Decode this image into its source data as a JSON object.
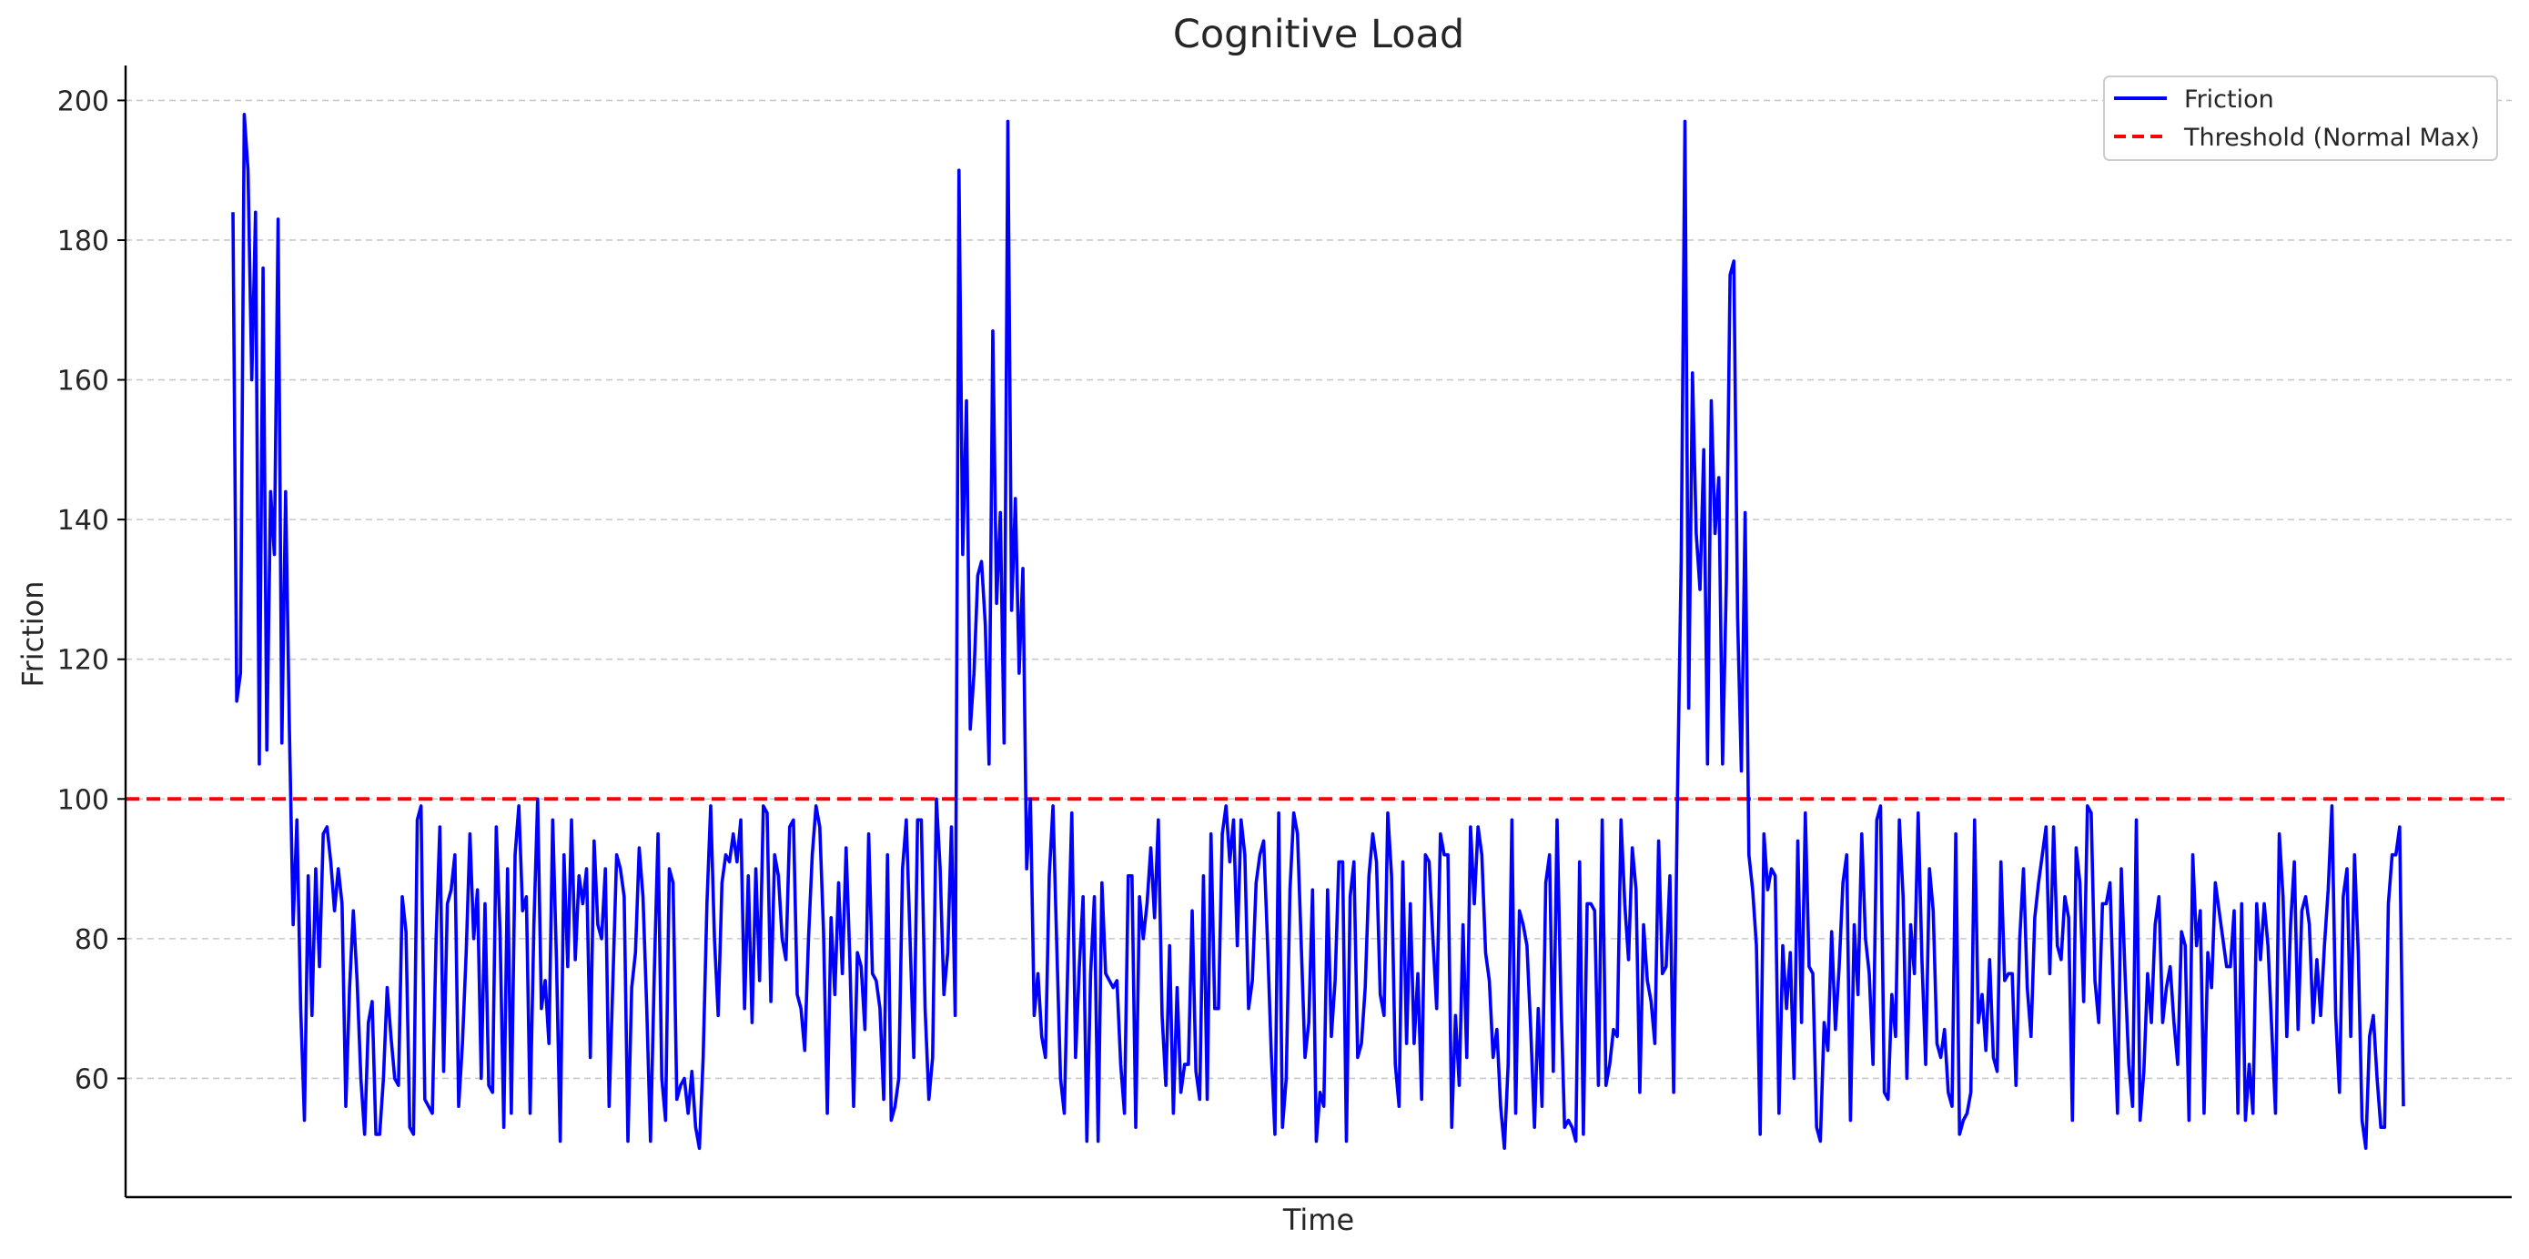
{
  "chart_data": {
    "type": "line",
    "title": "Cognitive Load",
    "xlabel": "Time",
    "ylabel": "Friction",
    "ylim": [
      43,
      205
    ],
    "yticks": [
      60,
      80,
      100,
      120,
      140,
      160,
      180,
      200
    ],
    "xticks_shown": false,
    "grid": "horizontal-dashed",
    "legend_position": "top-right",
    "series": [
      {
        "name": "Friction",
        "color": "#0000ff",
        "style": "solid",
        "values": [
          184,
          114,
          118,
          198,
          190,
          160,
          184,
          105,
          176,
          107,
          144,
          135,
          183,
          108,
          144,
          110,
          82,
          97,
          70,
          54,
          89,
          69,
          90,
          76,
          95,
          96,
          91,
          84,
          90,
          85,
          56,
          73,
          84,
          74,
          60,
          52,
          68,
          71,
          52,
          52,
          60,
          73,
          66,
          60,
          59,
          86,
          81,
          53,
          52,
          97,
          99,
          57,
          56,
          55,
          80,
          96,
          61,
          85,
          87,
          92,
          56,
          65,
          78,
          95,
          80,
          87,
          60,
          85,
          59,
          58,
          96,
          81,
          53,
          90,
          55,
          92,
          99,
          84,
          86,
          55,
          82,
          100,
          70,
          74,
          65,
          97,
          77,
          51,
          92,
          76,
          97,
          77,
          89,
          85,
          90,
          63,
          94,
          82,
          80,
          90,
          56,
          74,
          92,
          90,
          86,
          51,
          73,
          78,
          93,
          86,
          70,
          51,
          75,
          95,
          60,
          54,
          90,
          88,
          57,
          59,
          60,
          55,
          61,
          53,
          50,
          63,
          85,
          99,
          80,
          69,
          88,
          92,
          91,
          95,
          91,
          97,
          70,
          89,
          68,
          90,
          74,
          99,
          98,
          71,
          92,
          89,
          80,
          77,
          96,
          97,
          72,
          70,
          64,
          80,
          92,
          99,
          96,
          81,
          55,
          83,
          72,
          88,
          75,
          93,
          77,
          56,
          78,
          76,
          67,
          95,
          75,
          74,
          70,
          57,
          92,
          54,
          56,
          60,
          90,
          97,
          80,
          63,
          97,
          97,
          70,
          57,
          63,
          100,
          90,
          72,
          78,
          96,
          69,
          190,
          135,
          157,
          110,
          118,
          132,
          134,
          125,
          105,
          167,
          128,
          141,
          108,
          197,
          127,
          143,
          118,
          133,
          90,
          100,
          69,
          75,
          66,
          63,
          89,
          99,
          79,
          60,
          55,
          78,
          98,
          63,
          76,
          86,
          51,
          75,
          86,
          51,
          88,
          75,
          74,
          73,
          74,
          62,
          55,
          89,
          89,
          53,
          86,
          80,
          85,
          93,
          83,
          97,
          69,
          59,
          79,
          55,
          73,
          58,
          62,
          62,
          84,
          61,
          57,
          89,
          57,
          95,
          70,
          70,
          95,
          99,
          91,
          97,
          79,
          97,
          92,
          70,
          74,
          88,
          92,
          94,
          80,
          64,
          52,
          98,
          53,
          60,
          87,
          98,
          95,
          79,
          63,
          68,
          87,
          51,
          58,
          56,
          87,
          66,
          74,
          91,
          91,
          51,
          86,
          91,
          63,
          65,
          73,
          89,
          95,
          91,
          72,
          69,
          98,
          89,
          62,
          56,
          91,
          65,
          85,
          65,
          75,
          57,
          92,
          91,
          80,
          70,
          95,
          92,
          92,
          53,
          69,
          59,
          82,
          63,
          96,
          85,
          96,
          92,
          78,
          74,
          63,
          67,
          56,
          50,
          62,
          97,
          55,
          84,
          82,
          79,
          67,
          53,
          70,
          56,
          88,
          92,
          61,
          97,
          72,
          53,
          54,
          53,
          51,
          91,
          52,
          85,
          85,
          84,
          59,
          97,
          59,
          62,
          67,
          66,
          97,
          85,
          77,
          93,
          87,
          58,
          82,
          74,
          71,
          65,
          94,
          75,
          76,
          89,
          58,
          100,
          134,
          197,
          113,
          161,
          138,
          130,
          150,
          105,
          157,
          138,
          146,
          105,
          131,
          175,
          177,
          126,
          104,
          141,
          92,
          87,
          79,
          52,
          95,
          87,
          90,
          89,
          55,
          79,
          70,
          78,
          60,
          94,
          68,
          98,
          76,
          75,
          53,
          51,
          68,
          64,
          81,
          67,
          76,
          88,
          92,
          54,
          82,
          72,
          95,
          80,
          75,
          62,
          97,
          99,
          58,
          57,
          72,
          66,
          97,
          86,
          60,
          82,
          75,
          98,
          77,
          62,
          90,
          84,
          65,
          63,
          67,
          58,
          56,
          95,
          52,
          54,
          55,
          58,
          97,
          68,
          72,
          64,
          77,
          63,
          61,
          91,
          74,
          75,
          75,
          59,
          80,
          90,
          73,
          66,
          83,
          88,
          92,
          96,
          75,
          96,
          79,
          77,
          86,
          83,
          54,
          93,
          88,
          71,
          99,
          98,
          74,
          68,
          85,
          85,
          88,
          70,
          55,
          90,
          75,
          62,
          56,
          97,
          54,
          61,
          75,
          68,
          82,
          86,
          68,
          73,
          76,
          68,
          62,
          81,
          79,
          54,
          92,
          79,
          84,
          55,
          78,
          73,
          88,
          84,
          80,
          76,
          76,
          84,
          55,
          85,
          54,
          62,
          55,
          85,
          77,
          85,
          79,
          67,
          55,
          95,
          86,
          66,
          82,
          91,
          67,
          84,
          86,
          82,
          68,
          77,
          69,
          79,
          87,
          99,
          69,
          58,
          86,
          90,
          66,
          92,
          78,
          54,
          50,
          66,
          69,
          60,
          53,
          53,
          85,
          92,
          92,
          96,
          56
        ]
      },
      {
        "name": "Threshold (Normal Max)",
        "color": "#ff0000",
        "style": "dashed",
        "constant": 100
      }
    ]
  }
}
